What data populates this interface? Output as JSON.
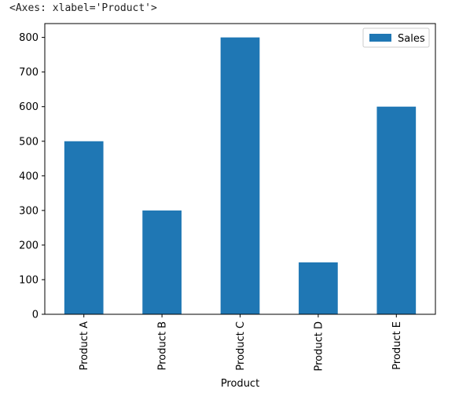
{
  "header": {
    "repr_text": "<Axes: xlabel='Product'>"
  },
  "colors": {
    "bar": "#1f77b4",
    "axis": "#000000",
    "legend_border": "#cccccc"
  },
  "chart_data": {
    "type": "bar",
    "categories": [
      "Product A",
      "Product B",
      "Product C",
      "Product D",
      "Product E"
    ],
    "series": [
      {
        "name": "Sales",
        "values": [
          500,
          300,
          800,
          150,
          600
        ]
      }
    ],
    "xlabel": "Product",
    "ylabel": "",
    "ylim": [
      0,
      840
    ],
    "yticks": [
      0,
      100,
      200,
      300,
      400,
      500,
      600,
      700,
      800
    ],
    "x_tick_rotation": "vertical",
    "legend": {
      "placement": "upper-right",
      "entries": [
        "Sales"
      ]
    },
    "grid": false
  }
}
